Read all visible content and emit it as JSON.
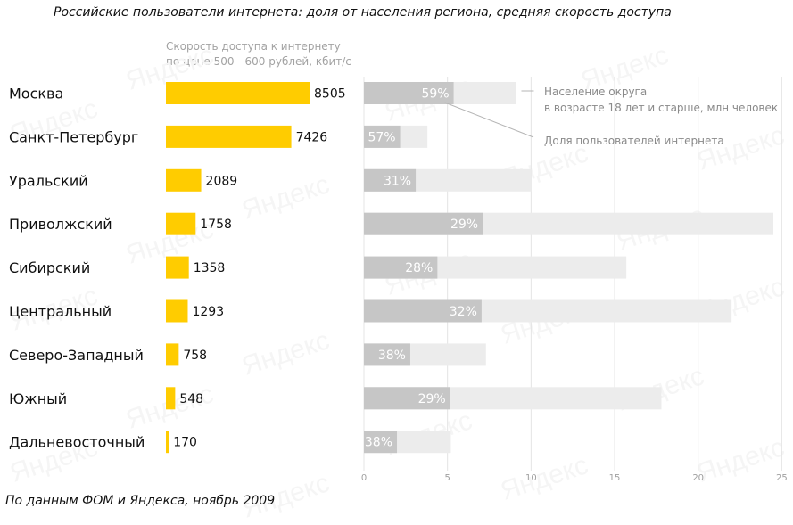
{
  "title": "Российские пользователи интернета: доля от населения региона, средняя скорость доступа",
  "source": "По данным ФОМ и Яндекса, ноябрь 2009",
  "watermark_text": "Яндекс",
  "colors": {
    "speed_bar": "#ffcc00",
    "share_bar": "#c6c6c6",
    "population_bar": "#ececec",
    "grid": "#e4e4e4"
  },
  "chart_data": {
    "type": "bar",
    "speed_label": [
      "Скорость доступа к интернету",
      "по цене 500—600 рублей, кбит/с"
    ],
    "legend": {
      "population": [
        "Население округа",
        "в возрасте 18 лет и старше, млн человек"
      ],
      "share": "Доля пользователей интернета"
    },
    "categories": [
      "Москва",
      "Санкт-Петербург",
      "Уральский",
      "Приволжский",
      "Сибирский",
      "Центральный",
      "Северо-Западный",
      "Южный",
      "Дальневосточный"
    ],
    "speed_kbps": [
      8505,
      7426,
      2089,
      1758,
      1358,
      1293,
      758,
      548,
      170
    ],
    "population_mln": [
      9.1,
      3.8,
      10.0,
      24.5,
      15.7,
      22.0,
      7.3,
      17.8,
      5.2
    ],
    "internet_share_pct": [
      59,
      57,
      31,
      29,
      28,
      32,
      38,
      29,
      38
    ],
    "share_labels": [
      "59%",
      "57%",
      "31%",
      "29%",
      "28%",
      "32%",
      "38%",
      "29%",
      "38%"
    ],
    "population_axis": {
      "ticks": [
        0,
        5,
        10,
        15,
        20,
        25
      ],
      "range": [
        0,
        25
      ]
    },
    "speed_range": [
      0,
      8505
    ]
  }
}
